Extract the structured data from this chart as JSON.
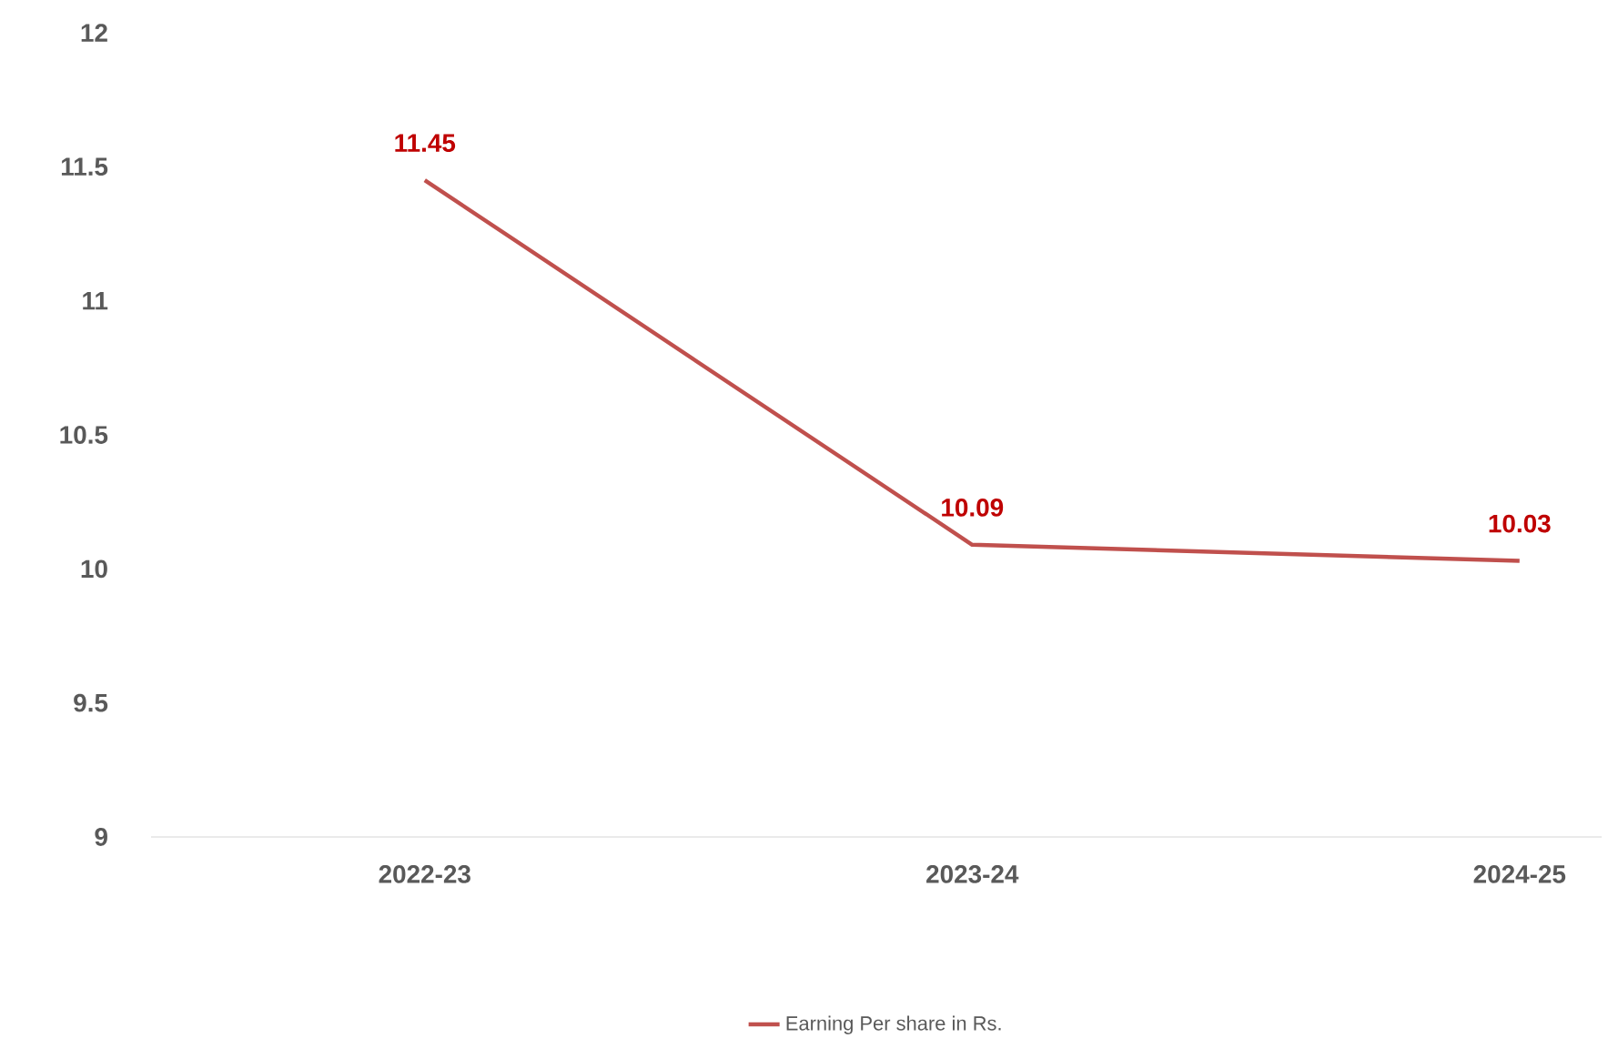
{
  "chart_data": {
    "type": "line",
    "categories": [
      "2022-23",
      "2023-24",
      "2024-25"
    ],
    "series": [
      {
        "name": "Earning Per share in Rs.",
        "color": "#c0504d",
        "values": [
          11.45,
          10.09,
          10.03
        ]
      }
    ],
    "ylim": [
      9,
      12
    ],
    "yticks": [
      9,
      9.5,
      10,
      10.5,
      11,
      11.5,
      12
    ],
    "data_labels": true,
    "legend": "bottom"
  }
}
